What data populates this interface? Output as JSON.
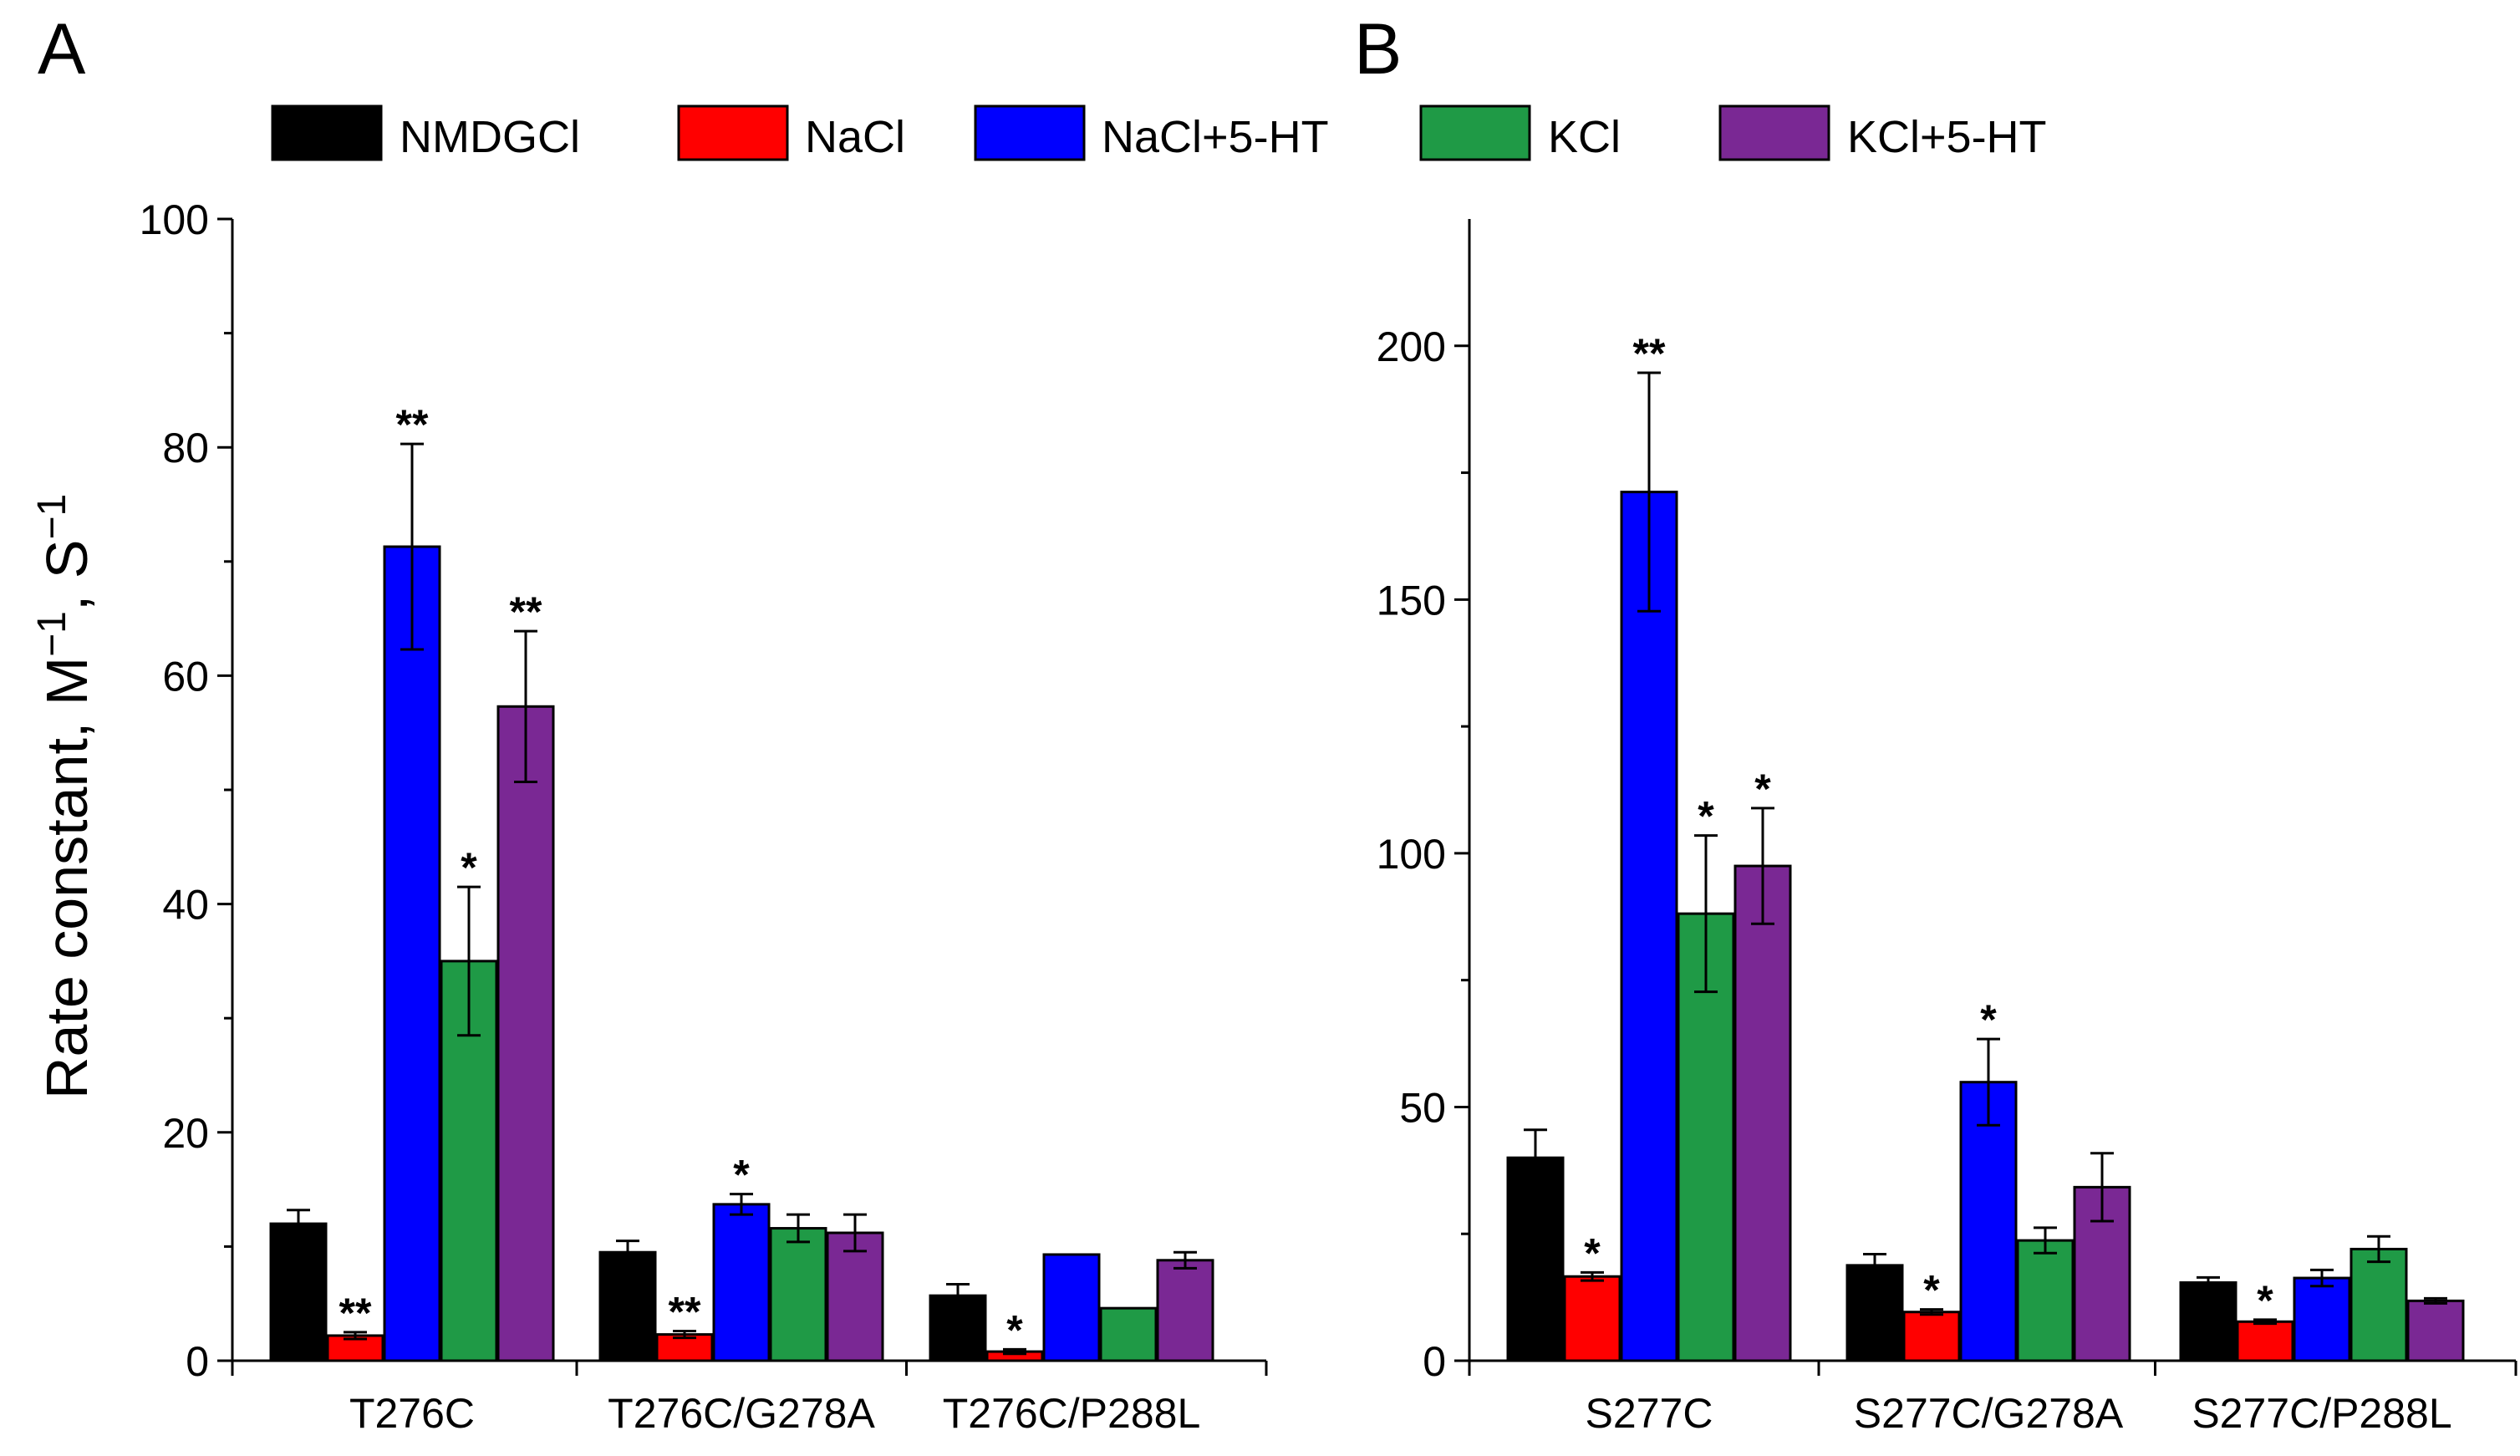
{
  "figure": {
    "panel_labels": [
      "A",
      "B"
    ],
    "legend": [
      {
        "label": "NMDGCl",
        "color": "#000000"
      },
      {
        "label": "NaCl",
        "color": "#ff0000"
      },
      {
        "label": "NaCl+5-HT",
        "color": "#0000ff"
      },
      {
        "label": "KCl",
        "color": "#1f9a46"
      },
      {
        "label": "KCl+5-HT",
        "color": "#7a2894"
      }
    ],
    "ylabel_main": "Rate constant, M",
    "ylabel_sup1": "−1",
    "ylabel_mid": ", S",
    "ylabel_sup2": "−1"
  },
  "chart_data": [
    {
      "type": "bar",
      "panel": "A",
      "categories": [
        "T276C",
        "T276C/G278A",
        "T276C/P288L"
      ],
      "ylim": [
        0,
        100
      ],
      "yticks": [
        0,
        20,
        40,
        60,
        80,
        100
      ],
      "ylabel": "Rate constant, M−1, S−1",
      "series": [
        {
          "name": "NMDGCl",
          "values": [
            12.0,
            9.5,
            5.7
          ],
          "errors": [
            1.2,
            1.0,
            1.0
          ],
          "marks": [
            "",
            "",
            ""
          ]
        },
        {
          "name": "NaCl",
          "values": [
            2.2,
            2.3,
            0.8
          ],
          "errors": [
            0.3,
            0.3,
            0.2
          ],
          "marks": [
            "**",
            "**",
            "*"
          ]
        },
        {
          "name": "NaCl+5-HT",
          "values": [
            71.3,
            13.7,
            9.3
          ],
          "errors": [
            9.0,
            0.9,
            0.0
          ],
          "marks": [
            "**",
            "*",
            ""
          ]
        },
        {
          "name": "KCl",
          "values": [
            35.0,
            11.6,
            4.6
          ],
          "errors": [
            6.5,
            1.2,
            0.0
          ],
          "marks": [
            "*",
            "",
            ""
          ]
        },
        {
          "name": "KCl+5-HT",
          "values": [
            57.3,
            11.2,
            8.8
          ],
          "errors": [
            6.6,
            1.6,
            0.7
          ],
          "marks": [
            "**",
            "",
            ""
          ]
        }
      ]
    },
    {
      "type": "bar",
      "panel": "B",
      "categories": [
        "S277C",
        "S277C/G278A",
        "S277C/P288L"
      ],
      "ylim": [
        0,
        225
      ],
      "yticks": [
        0,
        50,
        100,
        150,
        200
      ],
      "ylabel": "",
      "series": [
        {
          "name": "NMDGCl",
          "values": [
            40.0,
            18.8,
            15.4
          ],
          "errors": [
            5.5,
            2.2,
            1.0
          ],
          "marks": [
            "",
            "",
            ""
          ]
        },
        {
          "name": "NaCl",
          "values": [
            16.6,
            9.6,
            7.7
          ],
          "errors": [
            0.8,
            0.5,
            0.4
          ],
          "marks": [
            "*",
            "*",
            "*"
          ]
        },
        {
          "name": "NaCl+5-HT",
          "values": [
            171.2,
            54.9,
            16.3
          ],
          "errors": [
            23.5,
            8.5,
            1.6
          ],
          "marks": [
            "**",
            "*",
            ""
          ]
        },
        {
          "name": "KCl",
          "values": [
            88.1,
            23.7,
            22.0
          ],
          "errors": [
            15.4,
            2.5,
            2.5
          ],
          "marks": [
            "*",
            "",
            ""
          ]
        },
        {
          "name": "KCl+5-HT",
          "values": [
            97.5,
            34.2,
            11.8
          ],
          "errors": [
            11.4,
            6.7,
            0.5
          ],
          "marks": [
            "*",
            "",
            ""
          ]
        }
      ]
    }
  ]
}
